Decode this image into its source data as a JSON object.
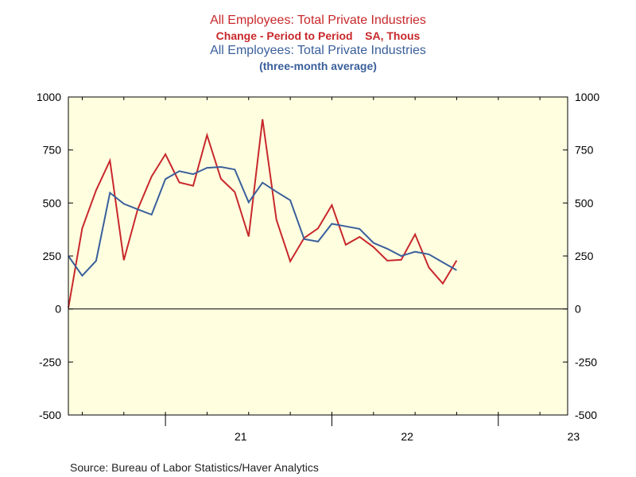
{
  "titles": {
    "series1_title": "All Employees: Total Private Industries",
    "series1_subtitle": "Change - Period to Period    SA, Thous",
    "series2_title": "All Employees: Total Private Industries",
    "series2_subtitle": "(three-month average)"
  },
  "source": "Source:  Bureau of Labor Statistics/Haver Analytics",
  "colors": {
    "series1": "#c8282b",
    "series2": "#3a5f9b",
    "plot_background": "#ffffe0"
  },
  "chart_data": {
    "type": "line",
    "x_axis": {
      "tick_labels": [
        "21",
        "22",
        "23"
      ],
      "range": [
        "2020-06",
        "2023-06"
      ]
    },
    "y_axis": {
      "ylim": [
        -500,
        1000
      ],
      "ticks": [
        1000,
        750,
        500,
        250,
        0,
        -250,
        -500
      ],
      "tick_labels": [
        "1000",
        "750",
        "500",
        "250",
        "0",
        "-250",
        "-500"
      ],
      "right_axis_mirror": true
    },
    "zero_line": true,
    "grid": false,
    "x": [
      "2020-06",
      "2020-07",
      "2020-08",
      "2020-09",
      "2020-10",
      "2020-11",
      "2020-12",
      "2021-01",
      "2021-02",
      "2021-03",
      "2021-04",
      "2021-05",
      "2021-06",
      "2021-07",
      "2021-08",
      "2021-09",
      "2021-10",
      "2021-11",
      "2021-12",
      "2022-01",
      "2022-02",
      "2022-03",
      "2022-04",
      "2022-05",
      "2022-06",
      "2022-07",
      "2022-08",
      "2022-09",
      "2022-10",
      "2022-11",
      "2022-12"
    ],
    "series": [
      {
        "color": "#c8282b",
        "values": [
          5,
          380,
          560,
          700,
          230,
          470,
          625,
          730,
          597,
          581,
          820,
          614,
          552,
          342,
          895,
          421,
          225,
          335,
          380,
          490,
          303,
          340,
          292,
          228,
          232,
          352,
          195,
          120,
          229,
          null,
          null
        ]
      },
      {
        "color": "#3a5f9b",
        "values": [
          250,
          157,
          227,
          548,
          496,
          470,
          445,
          613,
          650,
          636,
          666,
          670,
          658,
          503,
          596,
          553,
          513,
          330,
          318,
          402,
          390,
          378,
          312,
          284,
          250,
          270,
          258,
          220,
          183,
          null,
          null
        ]
      }
    ]
  }
}
